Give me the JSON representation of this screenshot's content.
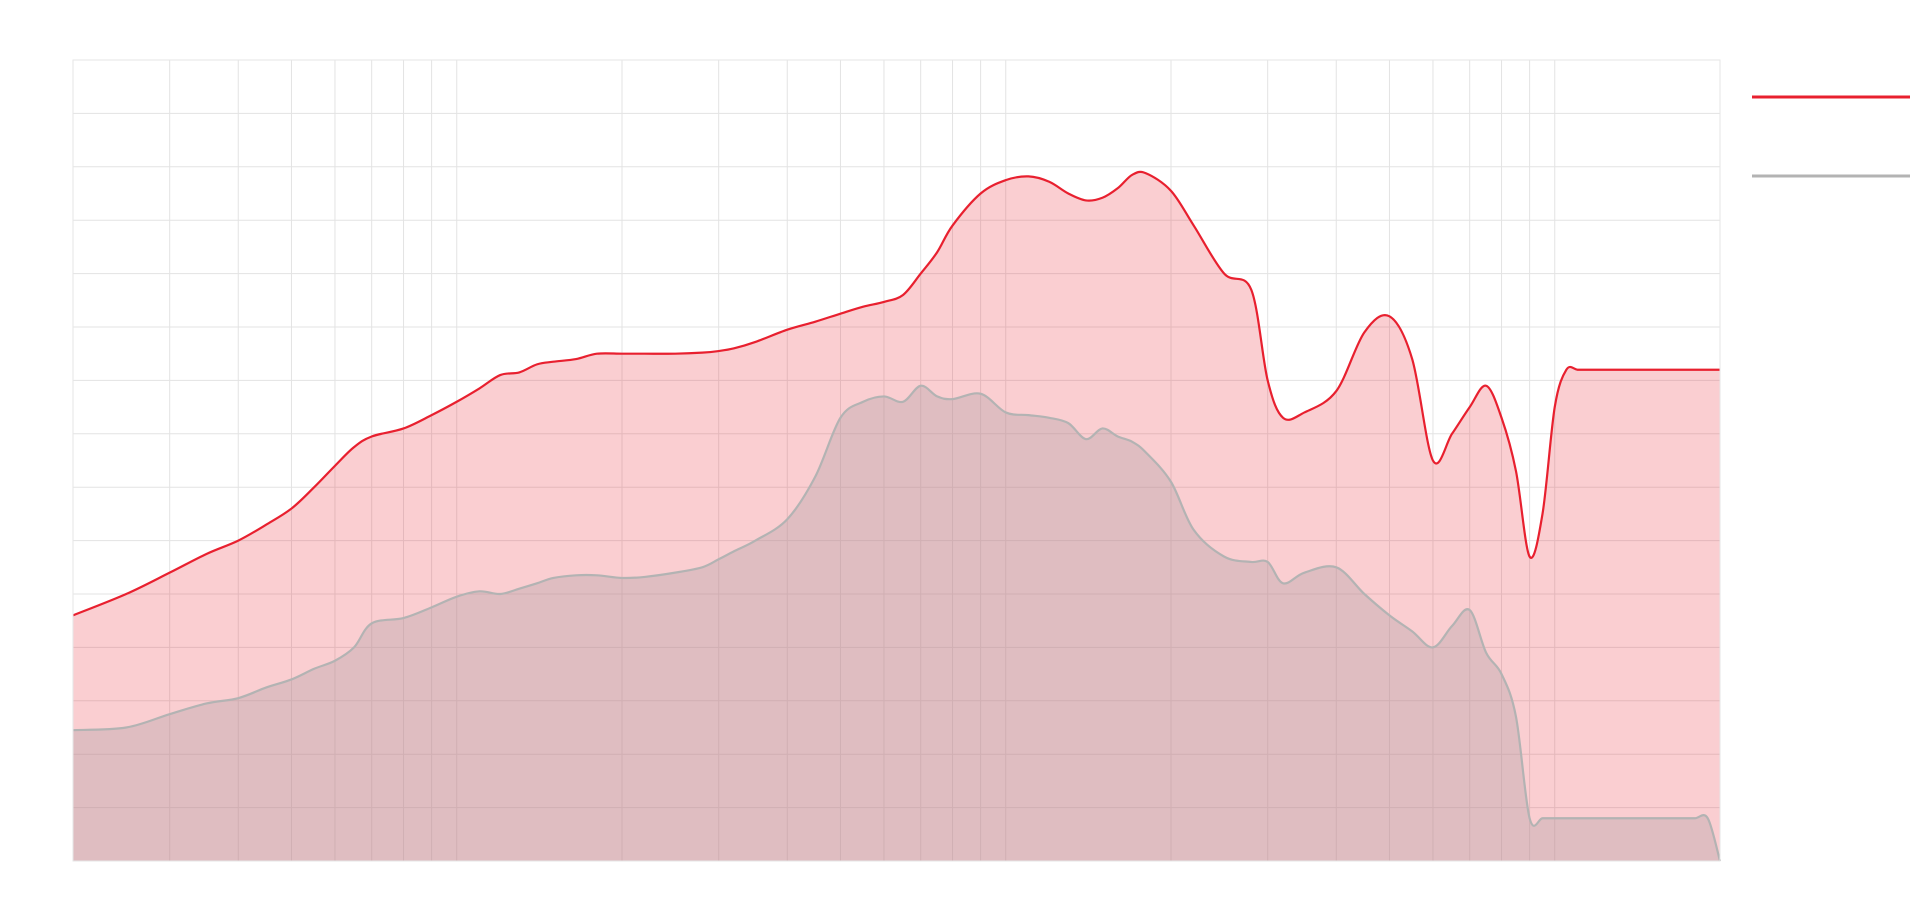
{
  "chart_data": {
    "type": "area",
    "title": "",
    "xlabel": "",
    "ylabel": "",
    "x_scale": "log",
    "xlim": [
      20,
      20000
    ],
    "ylim": [
      0,
      15
    ],
    "grid": true,
    "legend_position": "top-right",
    "x": [
      20,
      25,
      30,
      35,
      40,
      45,
      50,
      55,
      60,
      65,
      70,
      80,
      90,
      100,
      110,
      120,
      130,
      140,
      150,
      165,
      180,
      200,
      220,
      250,
      280,
      300,
      320,
      350,
      400,
      450,
      500,
      550,
      600,
      650,
      700,
      750,
      800,
      900,
      1000,
      1100,
      1200,
      1300,
      1400,
      1500,
      1600,
      1700,
      1800,
      2000,
      2200,
      2500,
      2800,
      3000,
      3200,
      3500,
      4000,
      4500,
      5000,
      5500,
      6000,
      6500,
      7000,
      7500,
      8000,
      8500,
      9000,
      9500,
      10000,
      10500,
      11000,
      11500,
      12000,
      12500,
      13000,
      13500,
      14000,
      15000,
      16000,
      17000,
      18000,
      19000,
      20000
    ],
    "series": [
      {
        "color": "#e8202f",
        "values": [
          4.6,
          5.0,
          5.4,
          5.75,
          6.0,
          6.3,
          6.6,
          7.0,
          7.4,
          7.75,
          7.95,
          8.1,
          8.35,
          8.6,
          8.85,
          9.1,
          9.15,
          9.3,
          9.35,
          9.4,
          9.5,
          9.5,
          9.5,
          9.5,
          9.52,
          9.55,
          9.6,
          9.72,
          9.95,
          10.1,
          10.25,
          10.38,
          10.47,
          10.6,
          11.0,
          11.4,
          11.9,
          12.5,
          12.75,
          12.82,
          12.72,
          12.5,
          12.37,
          12.42,
          12.6,
          12.85,
          12.88,
          12.55,
          11.9,
          11.0,
          10.7,
          9.0,
          8.3,
          8.4,
          8.8,
          9.9,
          10.2,
          9.4,
          7.5,
          8.0,
          8.5,
          8.9,
          8.3,
          7.3,
          5.7,
          6.5,
          8.5,
          9.2,
          9.2,
          9.2,
          9.2,
          9.2,
          9.2,
          9.2,
          9.2,
          9.2,
          9.2,
          9.2,
          9.2,
          9.2,
          9.2
        ]
      },
      {
        "color": "#b3b3b3",
        "values": [
          2.45,
          2.5,
          2.75,
          2.95,
          3.05,
          3.25,
          3.4,
          3.6,
          3.75,
          4.0,
          4.45,
          4.55,
          4.75,
          4.95,
          5.05,
          5.0,
          5.1,
          5.2,
          5.3,
          5.35,
          5.35,
          5.3,
          5.32,
          5.4,
          5.5,
          5.65,
          5.8,
          6.0,
          6.4,
          7.2,
          8.3,
          8.6,
          8.7,
          8.6,
          8.9,
          8.7,
          8.65,
          8.75,
          8.4,
          8.35,
          8.3,
          8.2,
          7.9,
          8.1,
          7.95,
          7.85,
          7.65,
          7.1,
          6.2,
          5.7,
          5.6,
          5.6,
          5.2,
          5.4,
          5.5,
          5.0,
          4.6,
          4.3,
          4.0,
          4.4,
          4.7,
          3.9,
          3.5,
          2.7,
          0.8,
          0.8,
          0.8,
          0.8,
          0.8,
          0.8,
          0.8,
          0.8,
          0.8,
          0.8,
          0.8,
          0.8,
          0.8,
          0.8,
          0.8,
          0.8,
          0.0
        ]
      }
    ]
  }
}
